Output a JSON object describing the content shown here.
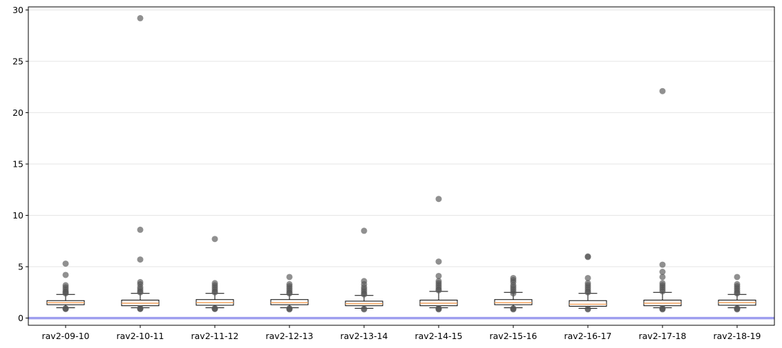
{
  "chart_data": {
    "type": "box",
    "title": "",
    "xlabel": "",
    "ylabel": "",
    "ylim": [
      -0.7,
      30.3
    ],
    "yticks": [
      0,
      5,
      10,
      15,
      20,
      25,
      30
    ],
    "grid": {
      "y": true,
      "x": false
    },
    "reference_line": {
      "y": 0,
      "color": "#9999ee"
    },
    "colors": {
      "box_edge": "#000000",
      "median": "#f4a460",
      "box_fill": "#ffffff",
      "outlier": "#555555",
      "grid": "#e6e6e6"
    },
    "categories": [
      "rav2-09-10",
      "rav2-10-11",
      "rav2-11-12",
      "rav2-12-13",
      "rav2-13-14",
      "rav2-14-15",
      "rav2-15-16",
      "rav2-16-17",
      "rav2-17-18",
      "rav2-18-19"
    ],
    "boxes": [
      {
        "q1": 1.3,
        "median": 1.5,
        "q3": 1.7,
        "whisker_low": 1.0,
        "whisker_high": 2.3,
        "outliers": [
          0.88,
          0.92,
          0.95,
          2.4,
          2.5,
          2.6,
          2.8,
          3.0,
          3.2,
          4.2,
          5.3
        ]
      },
      {
        "q1": 1.2,
        "median": 1.45,
        "q3": 1.75,
        "whisker_low": 1.0,
        "whisker_high": 2.4,
        "outliers": [
          0.88,
          0.92,
          0.95,
          2.5,
          2.6,
          2.8,
          3.0,
          3.3,
          3.5,
          5.7,
          8.6,
          29.2
        ]
      },
      {
        "q1": 1.25,
        "median": 1.5,
        "q3": 1.8,
        "whisker_low": 1.0,
        "whisker_high": 2.4,
        "outliers": [
          0.88,
          0.92,
          0.95,
          2.5,
          2.6,
          2.8,
          3.0,
          3.2,
          3.4,
          7.7
        ]
      },
      {
        "q1": 1.3,
        "median": 1.5,
        "q3": 1.8,
        "whisker_low": 1.0,
        "whisker_high": 2.3,
        "outliers": [
          0.85,
          0.9,
          0.95,
          2.4,
          2.5,
          2.7,
          2.9,
          3.1,
          3.3,
          4.0
        ]
      },
      {
        "q1": 1.2,
        "median": 1.4,
        "q3": 1.65,
        "whisker_low": 0.95,
        "whisker_high": 2.2,
        "outliers": [
          0.85,
          0.9,
          2.3,
          2.4,
          2.6,
          2.8,
          3.0,
          3.3,
          3.6,
          8.5
        ]
      },
      {
        "q1": 1.2,
        "median": 1.45,
        "q3": 1.75,
        "whisker_low": 1.0,
        "whisker_high": 2.6,
        "outliers": [
          0.85,
          0.9,
          0.95,
          2.7,
          2.8,
          3.0,
          3.2,
          3.4,
          3.6,
          4.1,
          5.5,
          11.6
        ]
      },
      {
        "q1": 1.3,
        "median": 1.5,
        "q3": 1.8,
        "whisker_low": 1.0,
        "whisker_high": 2.5,
        "outliers": [
          0.85,
          0.9,
          0.95,
          2.4,
          2.6,
          2.8,
          3.0,
          3.2,
          3.5,
          3.7,
          3.9
        ]
      },
      {
        "q1": 1.15,
        "median": 1.35,
        "q3": 1.7,
        "whisker_low": 0.95,
        "whisker_high": 2.4,
        "outliers": [
          0.85,
          0.9,
          2.5,
          2.6,
          2.8,
          3.0,
          3.2,
          3.4,
          3.9,
          5.95,
          6.0
        ]
      },
      {
        "q1": 1.2,
        "median": 1.45,
        "q3": 1.75,
        "whisker_low": 1.0,
        "whisker_high": 2.5,
        "outliers": [
          0.85,
          0.9,
          0.95,
          2.6,
          2.8,
          3.0,
          3.2,
          3.4,
          4.0,
          4.5,
          5.2,
          22.1
        ]
      },
      {
        "q1": 1.25,
        "median": 1.5,
        "q3": 1.75,
        "whisker_low": 1.0,
        "whisker_high": 2.3,
        "outliers": [
          0.85,
          0.9,
          0.95,
          2.4,
          2.5,
          2.7,
          2.9,
          3.1,
          3.3,
          4.0
        ]
      }
    ]
  }
}
